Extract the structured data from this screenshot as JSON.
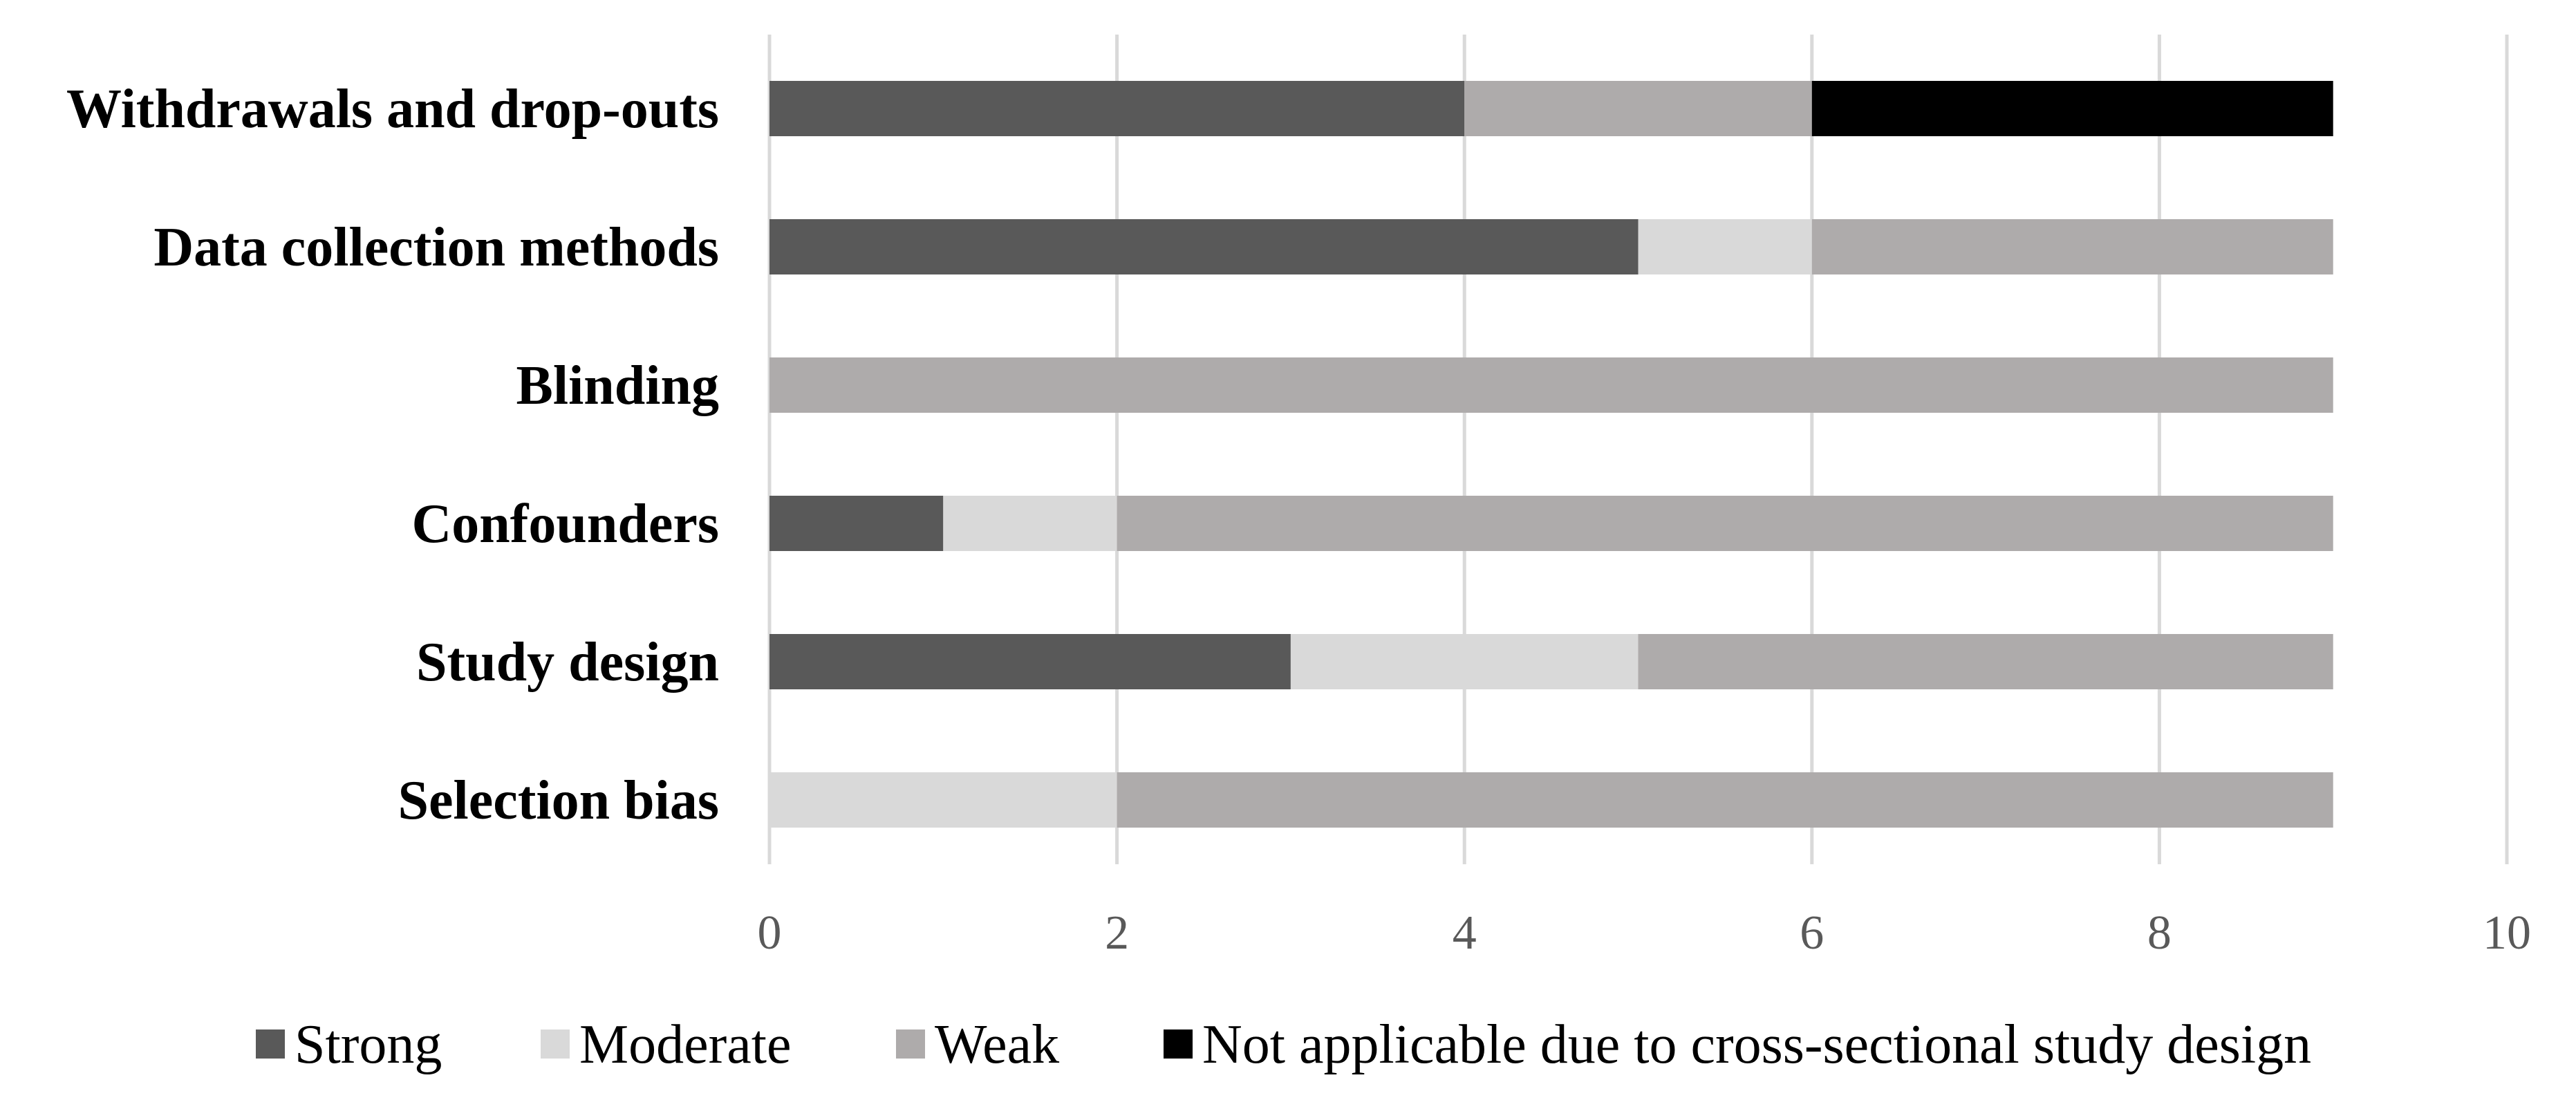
{
  "chart_data": {
    "type": "bar",
    "orientation": "horizontal",
    "stacked": true,
    "categories": [
      "Withdrawals and drop-outs",
      "Data collection methods",
      "Blinding",
      "Confounders",
      "Study design",
      "Selection bias"
    ],
    "series": [
      {
        "name": "Strong",
        "color": "#595959",
        "values": [
          4,
          5,
          0,
          1,
          3,
          0
        ]
      },
      {
        "name": "Moderate",
        "color": "#d9d9d9",
        "values": [
          0,
          1,
          0,
          1,
          2,
          2
        ]
      },
      {
        "name": "Weak",
        "color": "#aeabab",
        "values": [
          2,
          3,
          9,
          7,
          4,
          7
        ]
      },
      {
        "name": "Not applicable due to cross-sectional study design",
        "color": "#000000",
        "values": [
          3,
          0,
          0,
          0,
          0,
          0
        ]
      }
    ],
    "xlim": [
      0,
      10
    ],
    "xticks": [
      "0",
      "2",
      "4",
      "6",
      "8",
      "10"
    ],
    "grid": true,
    "legend_position": "bottom",
    "title": "",
    "xlabel": "",
    "ylabel": ""
  }
}
